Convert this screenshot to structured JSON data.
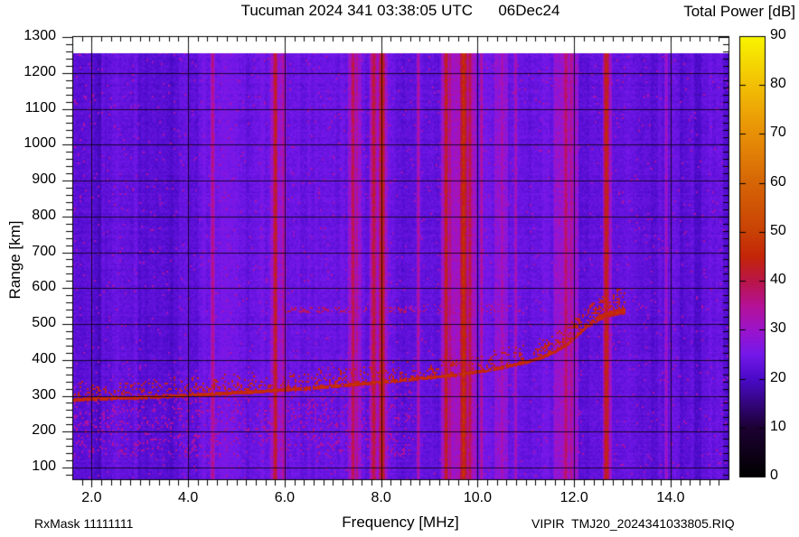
{
  "header": {
    "title": "Tucuman 2024 341 03:38:05 UTC      06Dec24",
    "colorbar_title": "Total Power [dB]"
  },
  "axes": {
    "xlabel": "Frequency [MHz]",
    "ylabel": "Range [km]"
  },
  "footer": {
    "rx_mask": "RxMask 11111111",
    "file": "VIPIR  TMJ20_2024341033805.RIQ"
  },
  "chart_data": {
    "type": "heatmap",
    "title": "Tucuman 2024 341 03:38:05 UTC 06Dec24",
    "xlabel": "Frequency [MHz]",
    "ylabel": "Range [km]",
    "colorbar_label": "Total Power [dB]",
    "x_range_mhz": [
      1.6,
      15.2
    ],
    "y_range_km": [
      67,
      1302
    ],
    "colorbar_range_db": [
      0,
      90
    ],
    "x_ticks": [
      2,
      4,
      6,
      8,
      10,
      12,
      14
    ],
    "x_tick_labels": [
      "2.0",
      "4.0",
      "6.0",
      "8.0",
      "10.0",
      "12.0",
      "14.0"
    ],
    "x_minor_step_mhz": 0.2,
    "y_ticks": [
      100,
      200,
      300,
      400,
      500,
      600,
      700,
      800,
      900,
      1000,
      1100,
      1200,
      1300
    ],
    "y_minor_step_km": 20,
    "cb_ticks": [
      0,
      10,
      20,
      30,
      40,
      50,
      60,
      70,
      80,
      90
    ],
    "grid": "on",
    "background_db": 23.3,
    "colormap_stops": [
      [
        0.0,
        "#000000"
      ],
      [
        0.111,
        "#1c0132"
      ],
      [
        0.222,
        "#4a0ac8"
      ],
      [
        0.278,
        "#7518ea"
      ],
      [
        0.333,
        "#9b14cc"
      ],
      [
        0.389,
        "#b51196"
      ],
      [
        0.444,
        "#b91549"
      ],
      [
        0.5,
        "#c42508"
      ],
      [
        0.556,
        "#c84105"
      ],
      [
        0.667,
        "#d66506"
      ],
      [
        0.778,
        "#e78f06"
      ],
      [
        0.889,
        "#f2bf04"
      ],
      [
        1.0,
        "#f8f500"
      ]
    ],
    "echo_trace": {
      "db": 47,
      "points": [
        [
          1.6,
          290
        ],
        [
          2.5,
          294
        ],
        [
          3.5,
          299
        ],
        [
          4.5,
          306
        ],
        [
          5.5,
          313
        ],
        [
          6.5,
          322
        ],
        [
          7.5,
          333
        ],
        [
          8.5,
          345
        ],
        [
          9.5,
          359
        ],
        [
          10.0,
          368
        ],
        [
          10.5,
          380
        ],
        [
          11.0,
          395
        ],
        [
          11.3,
          407
        ],
        [
          11.6,
          424
        ],
        [
          11.9,
          449
        ],
        [
          12.1,
          474
        ],
        [
          12.3,
          500
        ],
        [
          12.5,
          517
        ],
        [
          12.7,
          528
        ],
        [
          12.9,
          534
        ],
        [
          13.05,
          537
        ]
      ]
    },
    "rfi_lines": [
      {
        "f": 4.5,
        "w": 0.05,
        "db": 37
      },
      {
        "f": 5.8,
        "w": 0.05,
        "db": 44
      },
      {
        "f": 5.96,
        "w": 0.03,
        "db": 37
      },
      {
        "f": 7.41,
        "w": 0.05,
        "db": 41
      },
      {
        "f": 7.49,
        "w": 0.03,
        "db": 38
      },
      {
        "f": 7.84,
        "w": 0.06,
        "db": 42
      },
      {
        "f": 8.01,
        "w": 0.06,
        "db": 46
      },
      {
        "f": 8.76,
        "w": 0.04,
        "db": 36
      },
      {
        "f": 9.34,
        "w": 0.05,
        "db": 44
      },
      {
        "f": 9.42,
        "w": 0.03,
        "db": 40
      },
      {
        "f": 9.7,
        "w": 0.07,
        "db": 47
      },
      {
        "f": 9.83,
        "w": 0.05,
        "db": 42
      },
      {
        "f": 10.07,
        "w": 0.04,
        "db": 36
      },
      {
        "f": 10.5,
        "w": 0.05,
        "db": 34
      },
      {
        "f": 10.78,
        "w": 0.04,
        "db": 34
      },
      {
        "f": 11.82,
        "w": 0.06,
        "db": 39
      },
      {
        "f": 11.93,
        "w": 0.05,
        "db": 37
      },
      {
        "f": 12.66,
        "w": 0.06,
        "db": 45
      },
      {
        "f": 13.9,
        "w": 0.04,
        "db": 33
      }
    ],
    "rfi_bands": [
      {
        "f0": 5.7,
        "f1": 6.03,
        "db": 29.5
      },
      {
        "f0": 7.3,
        "f1": 7.58,
        "db": 29.5
      },
      {
        "f0": 7.76,
        "f1": 8.12,
        "db": 30
      },
      {
        "f0": 9.23,
        "f1": 9.97,
        "db": 31
      },
      {
        "f0": 10.33,
        "f1": 10.62,
        "db": 28.5
      },
      {
        "f0": 11.58,
        "f1": 12.08,
        "db": 29.5
      },
      {
        "f0": 12.58,
        "f1": 12.78,
        "db": 30.5
      }
    ],
    "texture_zones": [
      {
        "f0": 1.6,
        "f1": 2.3,
        "delta": -3.2,
        "banded": true
      },
      {
        "f0": 2.95,
        "f1": 3.8,
        "delta": -1.4,
        "banded": false
      },
      {
        "f0": 4.2,
        "f1": 5.6,
        "delta": 0.7,
        "banded": false
      },
      {
        "f0": 6.25,
        "f1": 7.25,
        "delta": 0.6,
        "banded": false
      },
      {
        "f0": 8.3,
        "f1": 9.2,
        "delta": -1.3,
        "banded": false
      },
      {
        "f0": 10.1,
        "f1": 11.5,
        "delta": 0.5,
        "banded": false
      },
      {
        "f0": 13.15,
        "f1": 15.2,
        "delta": -2.2,
        "banded": true
      }
    ],
    "spread_echoes": [
      {
        "f0": 5.9,
        "f1": 8.5,
        "km": 541,
        "half_km": 9,
        "p": 0.3,
        "db": 36
      },
      {
        "f0": 8.5,
        "f1": 10.95,
        "km": 543,
        "half_km": 14,
        "p": 0.13,
        "db": 33.5
      }
    ],
    "cusp_scatter": {
      "f0": 12.3,
      "f1": 13.2,
      "above_km": 65,
      "p": 0.1,
      "db": 41
    },
    "trace_cloud": {
      "d_min": -6,
      "d_max": 55,
      "p_base": 0.3,
      "f_extra": 11.3,
      "p_extra": 0.15,
      "db": 40
    },
    "under_trace_mottle": {
      "f_max": 8.6,
      "km_min": 130,
      "p": 0.1,
      "db": 33
    },
    "ambient_speckle": {
      "p": 0.02,
      "db": 31
    }
  }
}
